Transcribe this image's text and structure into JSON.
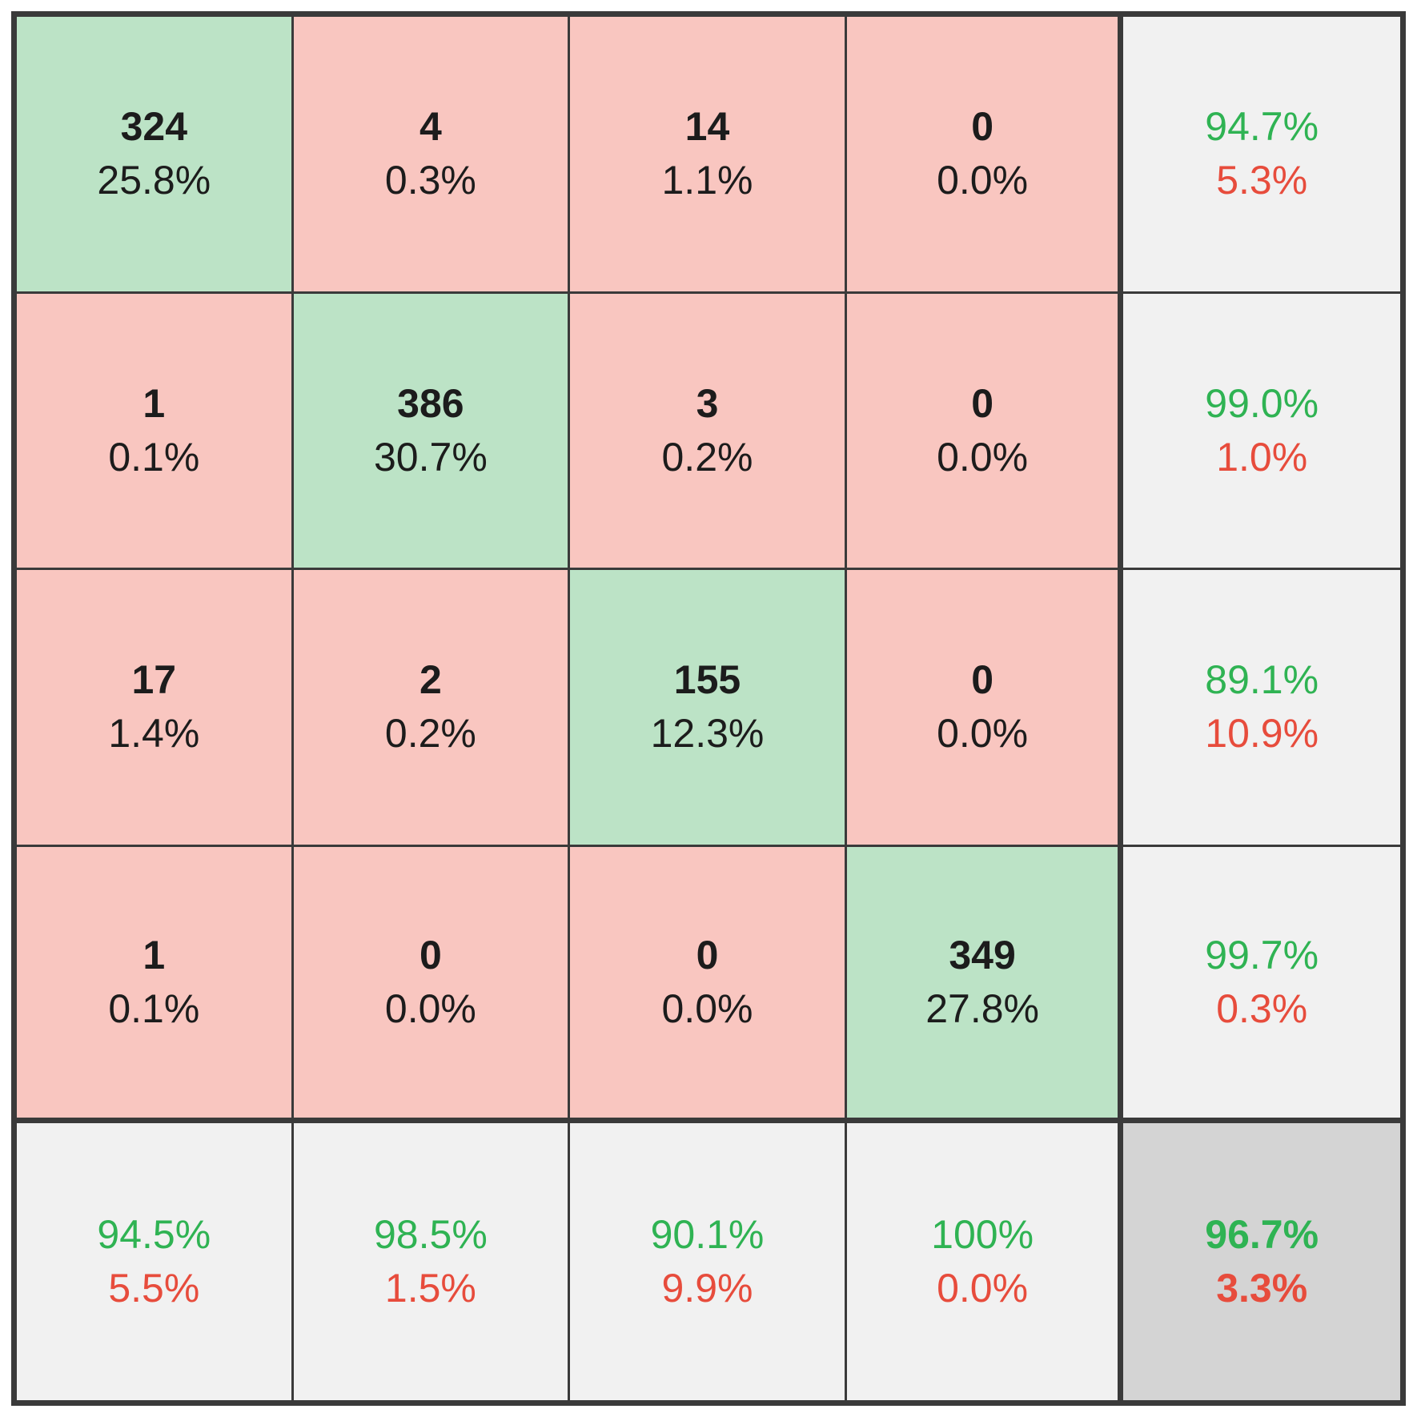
{
  "colors": {
    "correct_cell_bg": "#bce3c6",
    "incorrect_cell_bg": "#f9c6c0",
    "summary_cell_bg": "#f1f1f1",
    "total_cell_bg": "#d4d4d4",
    "positive_text": "#2fb353",
    "negative_text": "#e74c3c",
    "count_text": "#1c1c1c",
    "grid_border": "#3a3a3a"
  },
  "chart_data": {
    "type": "heatmap",
    "subtype": "confusion_matrix",
    "title": "",
    "num_classes": 4,
    "layout": "4x4 class matrix with per-row recall column, per-column precision row, and overall accuracy corner",
    "matrix_rows": [
      {
        "cells": [
          {
            "count": "324",
            "pct": "25.8%",
            "state": "correct"
          },
          {
            "count": "4",
            "pct": "0.3%",
            "state": "incorrect"
          },
          {
            "count": "14",
            "pct": "1.1%",
            "state": "incorrect"
          },
          {
            "count": "0",
            "pct": "0.0%",
            "state": "incorrect"
          }
        ],
        "row_summary": {
          "positive": "94.7%",
          "negative": "5.3%"
        }
      },
      {
        "cells": [
          {
            "count": "1",
            "pct": "0.1%",
            "state": "incorrect"
          },
          {
            "count": "386",
            "pct": "30.7%",
            "state": "correct"
          },
          {
            "count": "3",
            "pct": "0.2%",
            "state": "incorrect"
          },
          {
            "count": "0",
            "pct": "0.0%",
            "state": "incorrect"
          }
        ],
        "row_summary": {
          "positive": "99.0%",
          "negative": "1.0%"
        }
      },
      {
        "cells": [
          {
            "count": "17",
            "pct": "1.4%",
            "state": "incorrect"
          },
          {
            "count": "2",
            "pct": "0.2%",
            "state": "incorrect"
          },
          {
            "count": "155",
            "pct": "12.3%",
            "state": "correct"
          },
          {
            "count": "0",
            "pct": "0.0%",
            "state": "incorrect"
          }
        ],
        "row_summary": {
          "positive": "89.1%",
          "negative": "10.9%"
        }
      },
      {
        "cells": [
          {
            "count": "1",
            "pct": "0.1%",
            "state": "incorrect"
          },
          {
            "count": "0",
            "pct": "0.0%",
            "state": "incorrect"
          },
          {
            "count": "0",
            "pct": "0.0%",
            "state": "incorrect"
          },
          {
            "count": "349",
            "pct": "27.8%",
            "state": "correct"
          }
        ],
        "row_summary": {
          "positive": "99.7%",
          "negative": "0.3%"
        }
      }
    ],
    "column_summary": [
      {
        "positive": "94.5%",
        "negative": "5.5%"
      },
      {
        "positive": "98.5%",
        "negative": "1.5%"
      },
      {
        "positive": "90.1%",
        "negative": "9.9%"
      },
      {
        "positive": "100%",
        "negative": "0.0%"
      }
    ],
    "overall": {
      "positive": "96.7%",
      "negative": "3.3%"
    }
  }
}
